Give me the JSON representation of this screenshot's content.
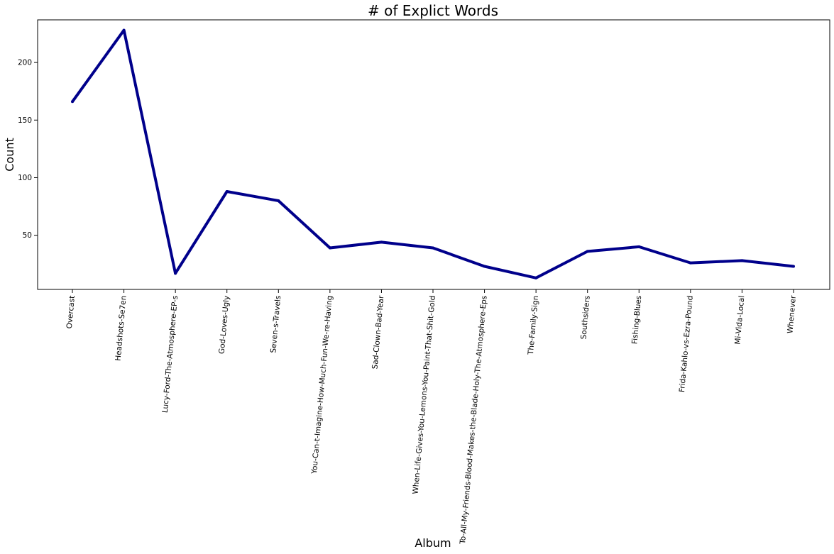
{
  "chart_data": {
    "type": "line",
    "title": "# of Explict Words",
    "xlabel": "Album",
    "ylabel": "Count",
    "categories": [
      "Overcast",
      "Headshots-Se7en",
      "Lucy-Ford-The-Atmosphere-EP-s",
      "God-Loves-Ugly",
      "Seven-s-Travels",
      "You-Can-t-Imagine-How-Much-Fun-We-re-Having",
      "Sad-Clown-Bad-Year",
      "When-Life-Gives-You-Lemons-You-Paint-That-Shit-Gold",
      "To-All-My-Friends-Blood-Makes-the-Blade-Holy-The-Atmosphere-Eps",
      "The-Family-Sign",
      "Southsiders",
      "Fishing-Blues",
      "Frida-Kahlo-vs-Ezra-Pound",
      "Mi-Vida-Local",
      "Whenever"
    ],
    "values": [
      166,
      228,
      17,
      88,
      80,
      39,
      44,
      39,
      23,
      13,
      36,
      40,
      26,
      28,
      23
    ],
    "ylim": [
      3,
      237
    ],
    "yticks": [
      50,
      100,
      150,
      200
    ],
    "line_color": "#00008b",
    "grid": false,
    "legend": false
  }
}
